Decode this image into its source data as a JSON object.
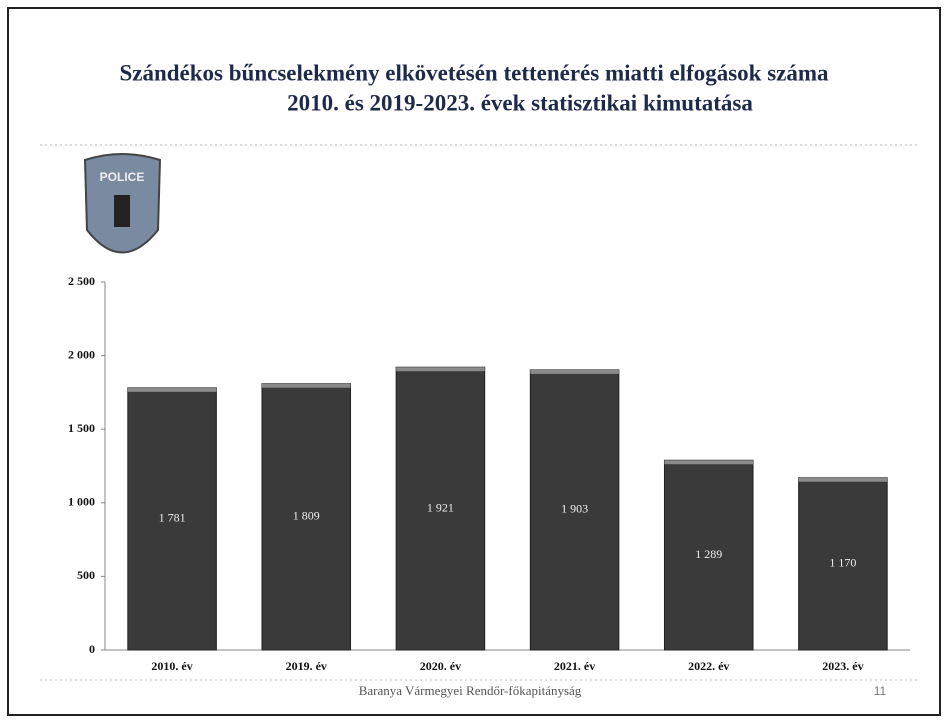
{
  "chart_data": {
    "type": "bar",
    "title": "Szándékos bűncselekmény elkövetésén tettenérés miatti elfogások száma",
    "subtitle": "2010. és 2019-2023. évek statisztikai kimutatása",
    "badge": "POLICE",
    "categories": [
      "2010. év",
      "2019. év",
      "2020. év",
      "2021. év",
      "2022. év",
      "2023. év"
    ],
    "values": [
      1781,
      1809,
      1921,
      1903,
      1289,
      1170
    ],
    "value_labels": [
      "1 781",
      "1 809",
      "1 921",
      "1 903",
      "1 289",
      "1 170"
    ],
    "color": "#3a3a3a",
    "ylim": [
      0,
      2500
    ],
    "yticks": [
      0,
      500,
      {
        "value": 1000,
        "label": "1 000"
      },
      {
        "value": 1500,
        "label": "1 500"
      },
      {
        "value": 2000,
        "label": "2 000"
      },
      {
        "value": 2500,
        "label": "2 500"
      }
    ],
    "grid": false,
    "footer": "Baranya Vármegyei Rendőr-főkapitányság",
    "page_number": "11"
  }
}
